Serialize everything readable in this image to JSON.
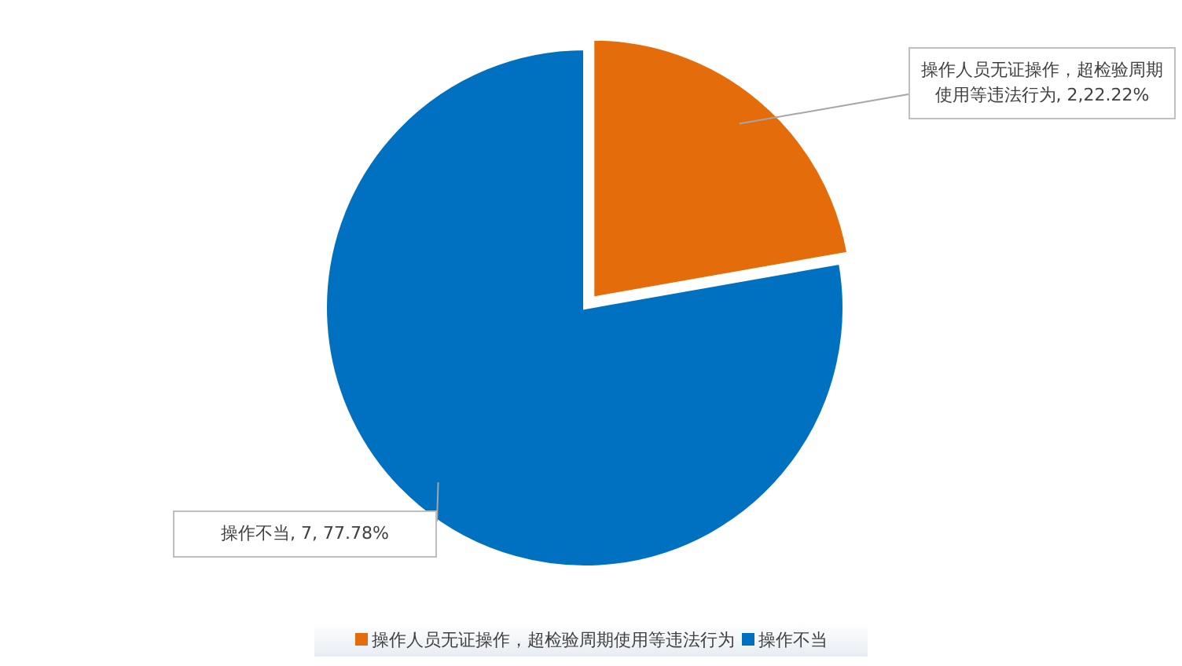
{
  "chart_data": {
    "type": "pie",
    "categories": [
      "操作人员无证操作，超检验周期使用等违法行为",
      "操作不当"
    ],
    "values": [
      2,
      7
    ],
    "colors": [
      "#e46c0a",
      "#0070c0"
    ],
    "value_labels": [
      "操作人员无证操作，超检验周期使用等违法行为, 2,22.22%",
      "操作不当, 7, 77.78%"
    ],
    "legend": "bottom"
  }
}
